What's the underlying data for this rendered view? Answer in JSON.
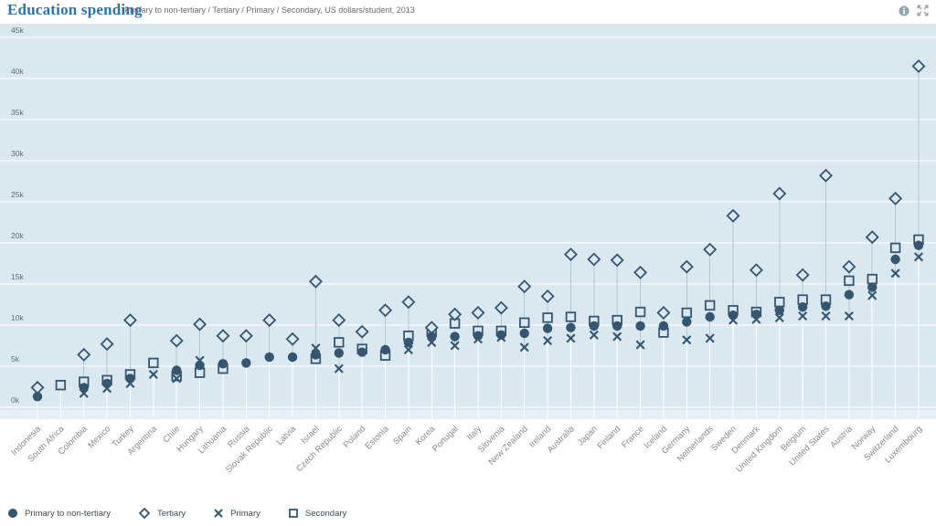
{
  "header": {
    "title": "Education spending",
    "subtitle": "Primary to non-tertiary / Tertiary / Primary / Secondary, US dollars/student, 2013"
  },
  "colors": {
    "marker": "#345670",
    "title": "#2c74ac",
    "plot_bg": "#dce8f0",
    "plot_bg_strip": "#e8eff6",
    "gridline": "#ffffff",
    "range_line": "#b4c6d2",
    "range_line_lower": "#ffffff",
    "y_tick_text": "#5a6b78",
    "x_tick_text": "#8a8a8a",
    "icon_gray": "#93a4b1"
  },
  "legend": [
    {
      "label": "Primary to non-tertiary",
      "marker": "circle-filled"
    },
    {
      "label": "Tertiary",
      "marker": "diamond-outline"
    },
    {
      "label": "Primary",
      "marker": "x-cross"
    },
    {
      "label": "Secondary",
      "marker": "square-outline"
    }
  ],
  "chart_data": {
    "type": "scatter",
    "title": "Education spending",
    "subtitle": "Primary to non-tertiary / Tertiary / Primary / Secondary, US dollars/student, 2013",
    "unit": "US dollars/student, values in thousands (k)",
    "year": "2013",
    "ylim_k": [
      0,
      45
    ],
    "y_tick_step_k": 5,
    "y_tick_labels": [
      "0k",
      "5k",
      "10k",
      "15k",
      "20k",
      "25k",
      "30k",
      "35k",
      "40k",
      "45k"
    ],
    "grid": "horizontal white lines on light-blue plot",
    "legend_position": "bottom-left",
    "categories": [
      "Indonesia",
      "South Africa",
      "Colombia",
      "Mexico",
      "Turkey",
      "Argentina",
      "Chile",
      "Hungary",
      "Lithuania",
      "Russia",
      "Slovak Republic",
      "Latvia",
      "Israel",
      "Czech Republic",
      "Poland",
      "Estonia",
      "Spain",
      "Korea",
      "Portugal",
      "Italy",
      "Slovenia",
      "New Zealand",
      "Ireland",
      "Australia",
      "Japan",
      "Finland",
      "France",
      "Iceland",
      "Germany",
      "Netherlands",
      "Sweden",
      "Denmark",
      "United Kingdom",
      "Belgium",
      "United States",
      "Austria",
      "Norway",
      "Switzerland",
      "Luxembourg"
    ],
    "series": [
      {
        "name": "Primary to non-tertiary",
        "marker": "circle-filled",
        "values_k": [
          1.3,
          null,
          2.4,
          2.9,
          3.5,
          null,
          4.5,
          5.1,
          5.3,
          5.4,
          6.1,
          6.1,
          6.4,
          6.6,
          6.7,
          7.0,
          7.9,
          8.6,
          8.6,
          8.7,
          8.8,
          9.0,
          9.6,
          9.7,
          9.9,
          9.9,
          9.9,
          9.9,
          10.4,
          11.0,
          11.2,
          11.3,
          11.8,
          12.2,
          12.3,
          13.7,
          14.6,
          18.0,
          19.7
        ]
      },
      {
        "name": "Tertiary",
        "marker": "diamond-outline",
        "values_k": [
          2.4,
          null,
          6.4,
          7.7,
          10.6,
          null,
          8.1,
          10.1,
          8.7,
          8.7,
          10.6,
          8.3,
          15.3,
          10.6,
          9.2,
          11.8,
          12.8,
          9.7,
          11.3,
          11.5,
          12.1,
          14.7,
          13.5,
          18.6,
          18.0,
          17.9,
          16.4,
          11.5,
          17.1,
          19.2,
          23.3,
          16.7,
          26.0,
          16.1,
          28.2,
          17.1,
          20.7,
          25.4,
          41.5
        ]
      },
      {
        "name": "Primary",
        "marker": "x-cross",
        "values_k": [
          null,
          null,
          1.7,
          2.3,
          2.9,
          4.0,
          3.5,
          5.7,
          null,
          null,
          null,
          null,
          7.2,
          4.7,
          null,
          null,
          7.0,
          7.9,
          7.5,
          8.3,
          8.5,
          7.3,
          8.1,
          8.4,
          8.8,
          8.6,
          7.6,
          null,
          8.2,
          8.4,
          10.6,
          10.7,
          10.9,
          11.1,
          11.1,
          11.1,
          13.6,
          16.3,
          18.3
        ]
      },
      {
        "name": "Secondary",
        "marker": "square-outline",
        "values_k": [
          null,
          2.7,
          3.1,
          3.3,
          4.0,
          5.4,
          3.8,
          4.2,
          4.7,
          null,
          null,
          null,
          5.9,
          7.9,
          7.1,
          6.3,
          8.7,
          9.2,
          10.2,
          9.3,
          9.3,
          10.3,
          10.9,
          11.0,
          10.5,
          10.6,
          11.6,
          9.1,
          11.5,
          12.4,
          11.8,
          11.6,
          12.8,
          13.1,
          13.1,
          15.4,
          15.6,
          19.4,
          20.4
        ]
      }
    ]
  }
}
